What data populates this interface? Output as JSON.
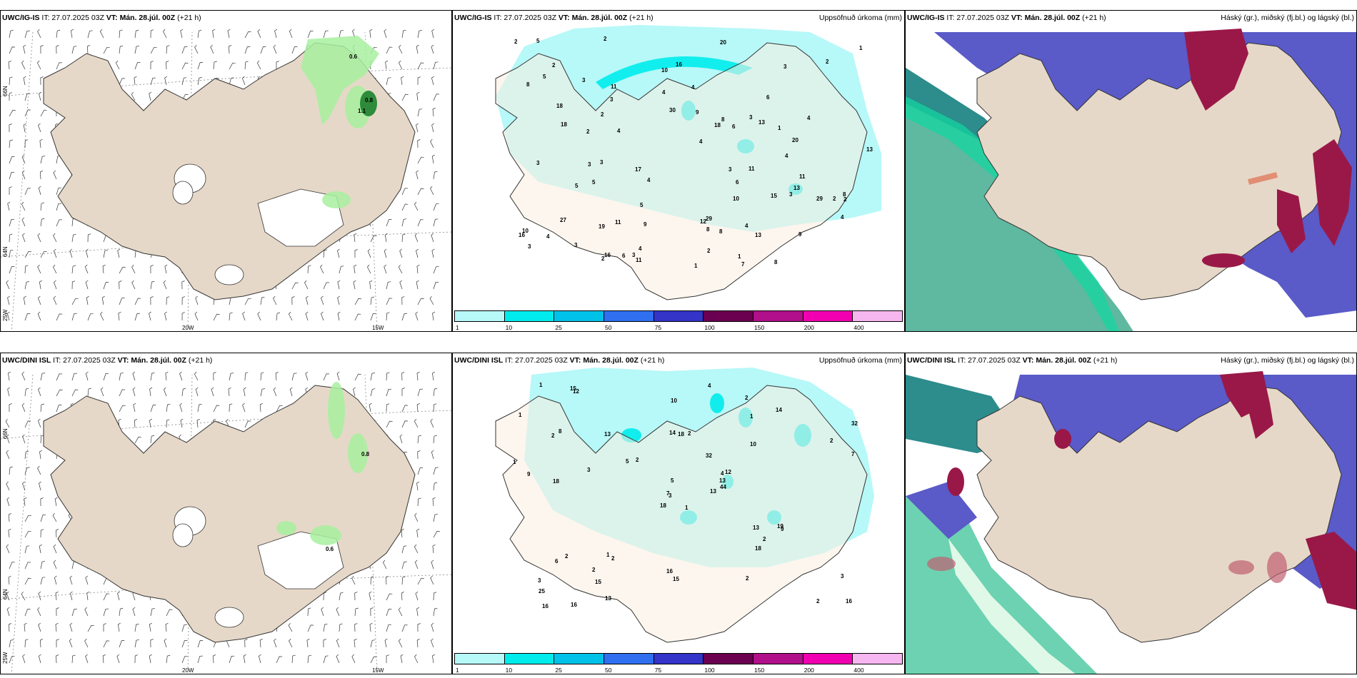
{
  "rows": [
    {
      "model": "UWC/IG-IS",
      "run_text": " IT: 27.07.2025 03Z ",
      "valid_bold": "VT: Mán. 28.júl. 00Z",
      "lead": " (+21 h)"
    },
    {
      "model": "UWC/DINI ISL",
      "run_text": " IT: 27.07.2025 03Z ",
      "valid_bold": "VT: Mán. 28.júl. 00Z",
      "lead": " (+21 h)"
    }
  ],
  "precip_title": "Uppsöfnuð úrkoma (mm)",
  "cloud_title": "Háský (gr.), miðský (fj.bl.) og lágský (bl.)",
  "legend": {
    "levels": [
      "1",
      "10",
      "25",
      "50",
      "75",
      "100",
      "150",
      "200",
      "400"
    ],
    "colors": [
      "#b7f8f8",
      "#00ecec",
      "#00c2e8",
      "#2f6ff0",
      "#3434c8",
      "#6b0050",
      "#b0108a",
      "#f000b0",
      "#f6b6f0"
    ]
  },
  "axes": {
    "lat_66": "66N",
    "lat_64": "64N",
    "lon_25": "25W",
    "lon_20": "20W",
    "lon_15": "15W"
  },
  "wind_panel": {
    "top_values": [
      "0.6",
      "0.8",
      "1.1"
    ],
    "bottom_values": [
      "0.8",
      "0.6"
    ]
  },
  "precip_top_values": [
    "3",
    "3",
    "3",
    "2",
    "4",
    "3",
    "2",
    "4",
    "2",
    "1",
    "16",
    "20",
    "27",
    "13",
    "30",
    "10",
    "4",
    "6",
    "13",
    "4",
    "15",
    "11",
    "18",
    "16",
    "29",
    "11",
    "12",
    "13",
    "29",
    "8",
    "5",
    "3",
    "9",
    "8",
    "7",
    "11",
    "9",
    "4",
    "4",
    "17",
    "3",
    "2",
    "8",
    "8",
    "6",
    "8",
    "2",
    "3",
    "2",
    "3",
    "2",
    "4",
    "18",
    "13",
    "20",
    "10",
    "4",
    "5",
    "2",
    "4",
    "3",
    "19",
    "18",
    "11",
    "8",
    "5",
    "11",
    "3",
    "3",
    "4",
    "3",
    "9",
    "10",
    "4",
    "6",
    "16",
    "2",
    "1",
    "2",
    "5",
    "5",
    "6",
    "1",
    "1"
  ],
  "precip_bottom_values": [
    "1",
    "2",
    "3",
    "3",
    "4",
    "2",
    "2",
    "2",
    "1",
    "13",
    "12",
    "16",
    "18",
    "32",
    "18",
    "10",
    "16",
    "14",
    "32",
    "2",
    "2",
    "25",
    "15",
    "18",
    "12",
    "9",
    "8",
    "10",
    "9",
    "13",
    "7",
    "7",
    "16",
    "5",
    "13",
    "14",
    "1",
    "2",
    "3",
    "19",
    "4",
    "5",
    "3",
    "18",
    "13",
    "1",
    "13",
    "16",
    "15",
    "44",
    "6",
    "2",
    "1",
    "2",
    "2",
    "2",
    "15",
    "1"
  ]
}
